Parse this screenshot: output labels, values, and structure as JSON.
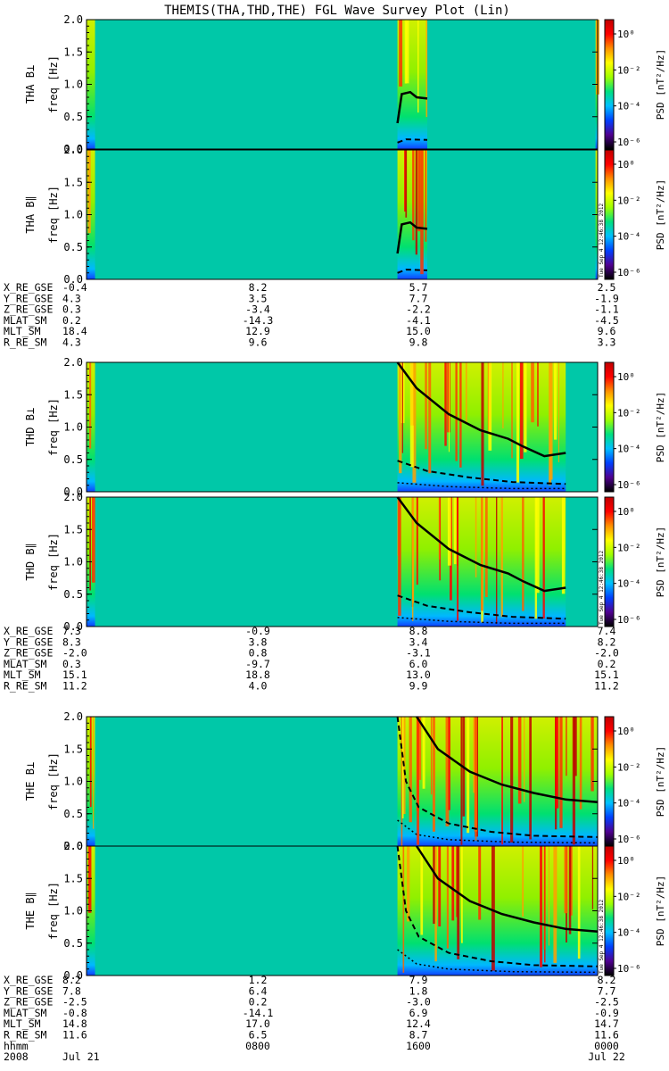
{
  "title": "THEMIS(THA,THD,THE) FGL Wave Survey Plot (Lin)",
  "colorbar": {
    "label": "PSD [nT²/Hz]",
    "tick_labels": [
      "10⁰",
      "10⁻²",
      "10⁻⁴",
      "10⁻⁶"
    ],
    "stamp": "Tue Sep 4 12:46:38 2012"
  },
  "colors": {
    "background": "#00c8a8",
    "spectrum": [
      "#000000",
      "#500090",
      "#0040ff",
      "#00c0ff",
      "#00e080",
      "#a0ff00",
      "#ffff00",
      "#ff9000",
      "#ff0000",
      "#c00000"
    ]
  },
  "chart_data": {
    "type": "heatmap",
    "panels": [
      {
        "id": "tha-perp",
        "ylabel": "THA B⊥",
        "yunit": "freq [Hz]",
        "ylim": [
          0,
          2.0
        ],
        "ytick_labels": [
          "0.0",
          "0.5",
          "1.0",
          "1.5",
          "2.0"
        ],
        "data_spans": [
          [
            0.0,
            0.4
          ],
          [
            14.6,
            16.0
          ],
          [
            23.9,
            24.0
          ]
        ],
        "lines": {
          "solid": [
            [
              14.6,
              0.4
            ],
            [
              14.8,
              0.85
            ],
            [
              15.2,
              0.88
            ],
            [
              15.5,
              0.8
            ],
            [
              16.0,
              0.78
            ]
          ],
          "dashed": [
            [
              14.6,
              0.1
            ],
            [
              15.0,
              0.15
            ],
            [
              16.0,
              0.14
            ]
          ]
        }
      },
      {
        "id": "tha-par",
        "ylabel": "THA B∥",
        "yunit": "freq [Hz]",
        "ylim": [
          0,
          2.0
        ],
        "ytick_labels": [
          "0.0",
          "0.5",
          "1.0",
          "1.5",
          "2.0"
        ],
        "data_spans": [
          [
            0.0,
            0.4
          ],
          [
            14.6,
            16.0
          ],
          [
            23.9,
            24.0
          ]
        ],
        "lines": {
          "solid": [
            [
              14.6,
              0.4
            ],
            [
              14.8,
              0.85
            ],
            [
              15.2,
              0.88
            ],
            [
              15.5,
              0.8
            ],
            [
              16.0,
              0.78
            ]
          ],
          "dashed": [
            [
              14.6,
              0.1
            ],
            [
              15.0,
              0.15
            ],
            [
              16.0,
              0.14
            ]
          ]
        }
      },
      {
        "id": "thd-perp",
        "ylabel": "THD B⊥",
        "yunit": "freq [Hz]",
        "ylim": [
          0,
          2.0
        ],
        "ytick_labels": [
          "0.0",
          "0.5",
          "1.0",
          "1.5",
          "2.0"
        ],
        "data_spans": [
          [
            0.0,
            0.4
          ],
          [
            14.6,
            22.5
          ]
        ],
        "lines": {
          "solid": [
            [
              14.6,
              2.0
            ],
            [
              15.5,
              1.6
            ],
            [
              17.0,
              1.2
            ],
            [
              18.5,
              0.95
            ],
            [
              19.8,
              0.82
            ],
            [
              20.5,
              0.7
            ],
            [
              21.5,
              0.55
            ],
            [
              22.5,
              0.6
            ]
          ],
          "dashed": [
            [
              14.6,
              0.48
            ],
            [
              16.0,
              0.32
            ],
            [
              18.0,
              0.22
            ],
            [
              20.0,
              0.15
            ],
            [
              22.5,
              0.12
            ]
          ],
          "dotted": [
            [
              14.6,
              0.14
            ],
            [
              17.0,
              0.08
            ],
            [
              20.0,
              0.05
            ],
            [
              22.5,
              0.05
            ]
          ]
        }
      },
      {
        "id": "thd-par",
        "ylabel": "THD B∥",
        "yunit": "freq [Hz]",
        "ylim": [
          0,
          2.0
        ],
        "ytick_labels": [
          "0.0",
          "0.5",
          "1.0",
          "1.5",
          "2.0"
        ],
        "data_spans": [
          [
            0.0,
            0.4
          ],
          [
            14.6,
            22.5
          ]
        ],
        "lines": {
          "solid": [
            [
              14.6,
              2.0
            ],
            [
              15.5,
              1.6
            ],
            [
              17.0,
              1.2
            ],
            [
              18.5,
              0.95
            ],
            [
              19.8,
              0.82
            ],
            [
              20.5,
              0.7
            ],
            [
              21.5,
              0.55
            ],
            [
              22.5,
              0.6
            ]
          ],
          "dashed": [
            [
              14.6,
              0.48
            ],
            [
              16.0,
              0.32
            ],
            [
              18.0,
              0.22
            ],
            [
              20.0,
              0.15
            ],
            [
              22.5,
              0.12
            ]
          ],
          "dotted": [
            [
              14.6,
              0.14
            ],
            [
              17.0,
              0.08
            ],
            [
              20.0,
              0.05
            ],
            [
              22.5,
              0.05
            ]
          ]
        }
      },
      {
        "id": "the-perp",
        "ylabel": "THE B⊥",
        "yunit": "freq [Hz]",
        "ylim": [
          0,
          2.0
        ],
        "ytick_labels": [
          "0.0",
          "0.5",
          "1.0",
          "1.5",
          "2.0"
        ],
        "data_spans": [
          [
            0.0,
            0.4
          ],
          [
            14.6,
            24.0
          ]
        ],
        "lines": {
          "solid": [
            [
              15.5,
              2.0
            ],
            [
              16.5,
              1.5
            ],
            [
              18.0,
              1.15
            ],
            [
              19.5,
              0.95
            ],
            [
              21.0,
              0.82
            ],
            [
              22.5,
              0.72
            ],
            [
              24.0,
              0.68
            ]
          ],
          "dashed": [
            [
              14.6,
              2.0
            ],
            [
              15.0,
              1.0
            ],
            [
              15.6,
              0.6
            ],
            [
              17.0,
              0.35
            ],
            [
              19.0,
              0.22
            ],
            [
              21.0,
              0.16
            ],
            [
              24.0,
              0.14
            ]
          ],
          "dotted": [
            [
              14.6,
              0.4
            ],
            [
              15.5,
              0.18
            ],
            [
              17.0,
              0.1
            ],
            [
              20.0,
              0.06
            ],
            [
              24.0,
              0.05
            ]
          ]
        }
      },
      {
        "id": "the-par",
        "ylabel": "THE B∥",
        "yunit": "freq [Hz]",
        "ylim": [
          0,
          2.0
        ],
        "ytick_labels": [
          "0.0",
          "0.5",
          "1.0",
          "1.5",
          "2.0"
        ],
        "data_spans": [
          [
            0.0,
            0.4
          ],
          [
            14.6,
            24.0
          ]
        ],
        "lines": {
          "solid": [
            [
              15.5,
              2.0
            ],
            [
              16.5,
              1.5
            ],
            [
              18.0,
              1.15
            ],
            [
              19.5,
              0.95
            ],
            [
              21.0,
              0.82
            ],
            [
              22.5,
              0.72
            ],
            [
              24.0,
              0.68
            ]
          ],
          "dashed": [
            [
              14.6,
              2.0
            ],
            [
              15.0,
              1.0
            ],
            [
              15.6,
              0.6
            ],
            [
              17.0,
              0.35
            ],
            [
              19.0,
              0.22
            ],
            [
              21.0,
              0.16
            ],
            [
              24.0,
              0.14
            ]
          ],
          "dotted": [
            [
              14.6,
              0.4
            ],
            [
              15.5,
              0.18
            ],
            [
              17.0,
              0.1
            ],
            [
              20.0,
              0.06
            ],
            [
              24.0,
              0.05
            ]
          ]
        }
      }
    ],
    "orbit_blocks": [
      {
        "labels": [
          "X_RE_GSE",
          "Y_RE_GSE",
          "Z_RE_GSE",
          "MLAT_SM",
          "MLT_SM",
          "R_RE_SM"
        ],
        "columns": [
          [
            "-0.4",
            "4.3",
            "0.3",
            "0.2",
            "18.4",
            "4.3"
          ],
          [
            "8.2",
            "3.5",
            "-3.4",
            "-14.3",
            "12.9",
            "9.6"
          ],
          [
            "5.7",
            "7.7",
            "-2.2",
            "-4.1",
            "15.0",
            "9.8"
          ],
          [
            "2.5",
            "-1.9",
            "-1.1",
            "-4.5",
            "9.6",
            "3.3"
          ]
        ]
      },
      {
        "labels": [
          "X_RE_GSE",
          "Y_RE_GSE",
          "Z_RE_GSE",
          "MLAT_SM",
          "MLT_SM",
          "R_RE_SM"
        ],
        "columns": [
          [
            "7.3",
            "8.3",
            "-2.0",
            "0.3",
            "15.1",
            "11.2"
          ],
          [
            "-0.9",
            "3.8",
            "0.8",
            "-9.7",
            "18.8",
            "4.0"
          ],
          [
            "8.8",
            "3.4",
            "-3.1",
            "6.0",
            "13.0",
            "9.9"
          ],
          [
            "7.4",
            "8.2",
            "-2.0",
            "0.2",
            "15.1",
            "11.2"
          ]
        ]
      },
      {
        "labels": [
          "X_RE_GSE",
          "Y_RE_GSE",
          "Z_RE_GSE",
          "MLAT_SM",
          "MLT_SM",
          "R_RE_SM",
          "hhmm",
          "2008"
        ],
        "columns": [
          [
            "8.2",
            "7.8",
            "-2.5",
            "-0.8",
            "14.8",
            "11.6",
            "",
            "Jul 21"
          ],
          [
            "1.2",
            "6.4",
            "0.2",
            "-14.1",
            "17.0",
            "6.5",
            "0800",
            ""
          ],
          [
            "7.9",
            "1.8",
            "-3.0",
            "6.9",
            "12.4",
            "8.7",
            "1600",
            ""
          ],
          [
            "8.2",
            "7.7",
            "-2.5",
            "-0.9",
            "14.7",
            "11.6",
            "0000",
            "Jul 22"
          ]
        ]
      }
    ]
  }
}
